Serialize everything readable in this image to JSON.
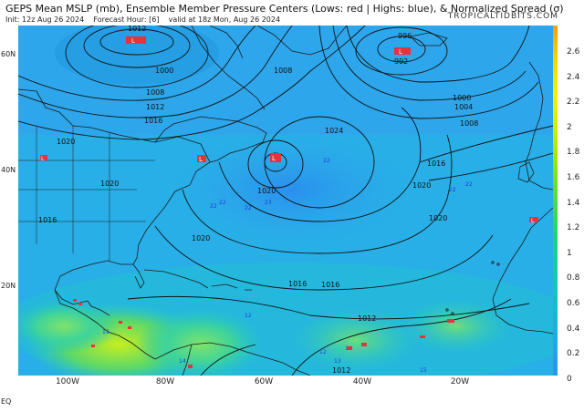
{
  "header": {
    "title": "GEPS Mean MSLP (mb), Ensemble Member Pressure Centers (Lows: red | Highs: blue), & Normalized Spread (σ)",
    "init": "Init: 12z Aug 26 2024",
    "forecast_hour": "Forecast Hour: [6]",
    "valid": "valid at 18z Mon, Aug 26 2024",
    "brand": "TROPICALTIDBITS.COM"
  },
  "axes": {
    "lat_labels": [
      "60N",
      "40N",
      "20N",
      "EQ"
    ],
    "lon_labels": [
      "100W",
      "80W",
      "60W",
      "40W",
      "20W"
    ]
  },
  "colorbar": {
    "ticks": [
      "2.6",
      "2.4",
      "2.2",
      "2",
      "1.8",
      "1.6",
      "1.4",
      "1.2",
      "1",
      "0.8",
      "0.6",
      "0.4",
      "0.2",
      "0"
    ],
    "colors": [
      "#ff9a00",
      "#ffd400",
      "#f2f200",
      "#c8f000",
      "#8ee800",
      "#4fdc3a",
      "#1fd27a",
      "#19c9a8",
      "#16bccc",
      "#1fa8e6",
      "#2b94f0"
    ]
  },
  "contours": [
    "1012",
    "1000",
    "1008",
    "1012",
    "1016",
    "1020",
    "1020",
    "1016",
    "1024",
    "1020",
    "1020",
    "1016",
    "996",
    "992",
    "1000",
    "1004",
    "1008",
    "1016",
    "1020",
    "1020",
    "1016",
    "1012",
    "1012",
    "1008"
  ],
  "centers_low": [
    "L",
    "L",
    "L",
    "L",
    "L",
    "L"
  ],
  "centers_high": [
    "22",
    "22",
    "22",
    "23",
    "22",
    "22",
    "22",
    "12",
    "13",
    "14",
    "15",
    "12",
    "13",
    "14"
  ]
}
